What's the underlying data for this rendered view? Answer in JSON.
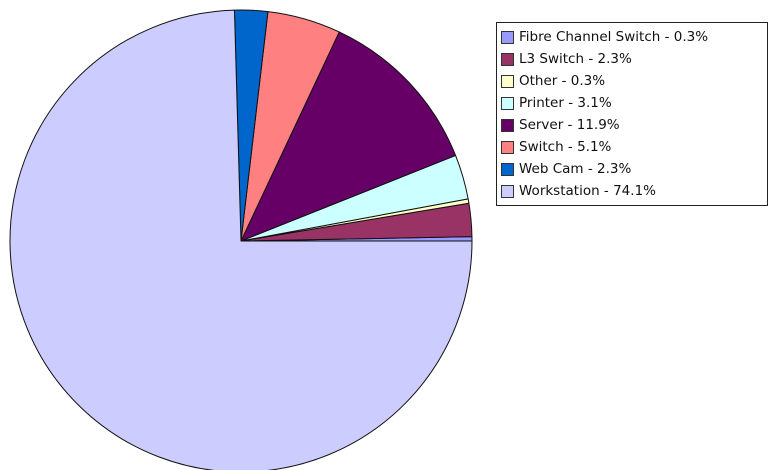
{
  "chart_data": {
    "type": "pie",
    "title": "",
    "legend_position": "top-right",
    "slices": [
      {
        "label": "Fibre Channel Switch - 0.3%",
        "name": "Fibre Channel Switch",
        "value": 0.3,
        "color": "#9999ff"
      },
      {
        "label": "L3 Switch - 2.3%",
        "name": "L3 Switch",
        "value": 2.3,
        "color": "#993366"
      },
      {
        "label": "Other - 0.3%",
        "name": "Other",
        "value": 0.3,
        "color": "#ffffcc"
      },
      {
        "label": "Printer - 3.1%",
        "name": "Printer",
        "value": 3.1,
        "color": "#ccffff"
      },
      {
        "label": "Server - 11.9%",
        "name": "Server",
        "value": 11.9,
        "color": "#660066"
      },
      {
        "label": "Switch - 5.1%",
        "name": "Switch",
        "value": 5.1,
        "color": "#ff8080"
      },
      {
        "label": "Web Cam - 2.3%",
        "name": "Web Cam",
        "value": 2.3,
        "color": "#0066cc"
      },
      {
        "label": "Workstation - 74.1%",
        "name": "Workstation",
        "value": 74.1,
        "color": "#ccccff"
      }
    ]
  }
}
